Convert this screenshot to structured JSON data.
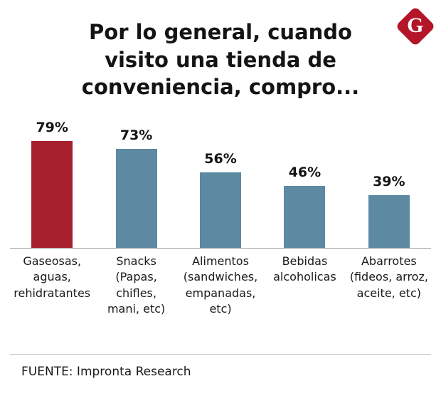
{
  "header": {
    "title": "Por lo general, cuando\nvisito una tienda de\nconveniencia, compro...",
    "logo_letter": "G"
  },
  "chart_data": {
    "type": "bar",
    "title": "Por lo general, cuando visito una tienda de conveniencia, compro...",
    "categories": [
      "Gaseosas,\naguas,\nrehidratantes",
      "Snacks\n(Papas,\nchifles,\nmani, etc)",
      "Alimentos\n(sandwiches,\nempanadas,\netc)",
      "Bebidas\nalcoholicas",
      "Abarrotes\n(fideos, arroz,\naceite, etc)"
    ],
    "values": [
      79,
      73,
      56,
      46,
      39
    ],
    "value_labels": [
      "79%",
      "73%",
      "56%",
      "46%",
      "39%"
    ],
    "bar_colors": [
      "#a6202e",
      "#5d89a3",
      "#5d89a3",
      "#5d89a3",
      "#5d89a3"
    ],
    "xlabel": "",
    "ylabel": "",
    "ylim": [
      0,
      100
    ],
    "grid": false,
    "legend": false
  },
  "footer": {
    "source": "FUENTE: Impronta Research"
  },
  "colors": {
    "highlight_red": "#a6202e",
    "bar_blue": "#5d89a3",
    "logo_red": "#b41528",
    "axis_line": "#a3a3a3"
  }
}
